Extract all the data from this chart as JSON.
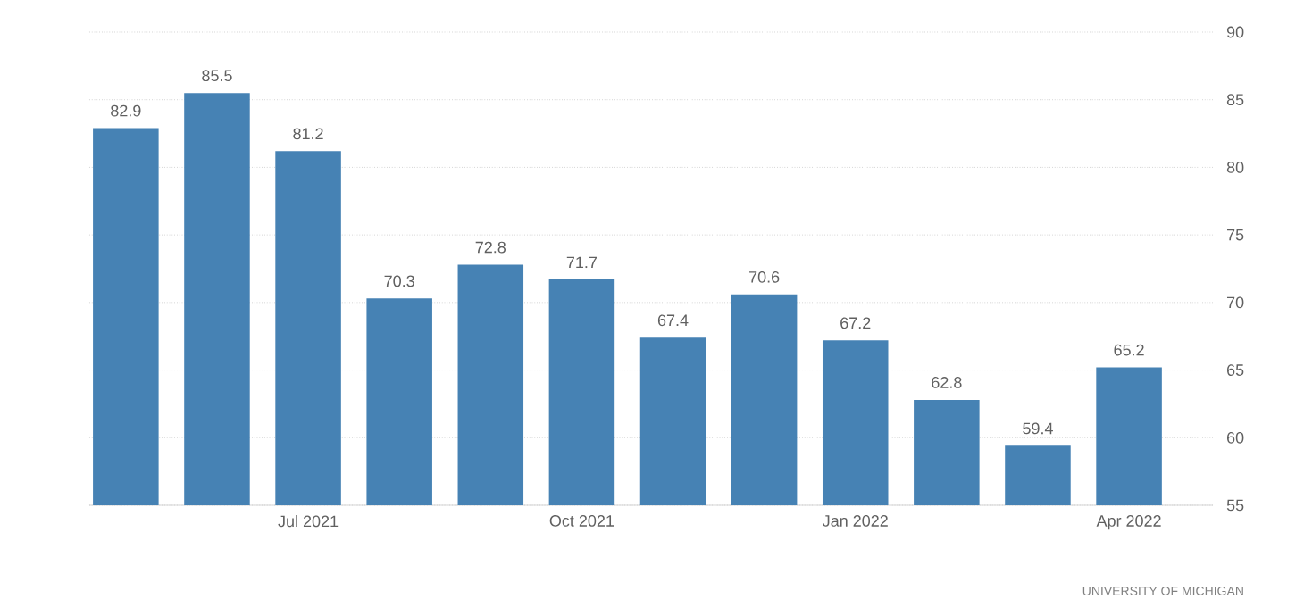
{
  "chart_data": {
    "type": "bar",
    "categories": [
      null,
      null,
      "Jul 2021",
      null,
      null,
      "Oct 2021",
      null,
      null,
      "Jan 2022",
      null,
      null,
      "Apr 2022"
    ],
    "values": [
      82.9,
      85.5,
      81.2,
      70.3,
      72.8,
      71.7,
      67.4,
      70.6,
      67.2,
      62.8,
      59.4,
      65.2
    ],
    "color": "#4682b4",
    "ylim": [
      55,
      90
    ],
    "yticks": [
      55,
      60,
      65,
      70,
      75,
      80,
      85,
      90
    ],
    "grid": "y",
    "data_labels": true,
    "annotations": [
      "UNIVERSITY OF MICHIGAN"
    ]
  }
}
